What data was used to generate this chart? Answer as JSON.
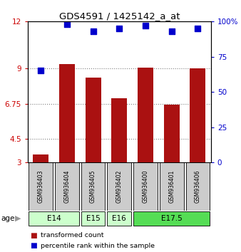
{
  "title": "GDS4591 / 1425142_a_at",
  "samples": [
    "GSM936403",
    "GSM936404",
    "GSM936405",
    "GSM936402",
    "GSM936400",
    "GSM936401",
    "GSM936406"
  ],
  "bar_values": [
    3.5,
    9.3,
    8.4,
    7.1,
    9.05,
    6.7,
    9.0
  ],
  "percentile_values": [
    65,
    98,
    93,
    95,
    97,
    93,
    95
  ],
  "ylim_left": [
    3,
    12
  ],
  "ylim_right": [
    0,
    100
  ],
  "yticks_left": [
    3,
    4.5,
    6.75,
    9,
    12
  ],
  "yticks_right": [
    0,
    25,
    50,
    75,
    100
  ],
  "ytick_labels_left": [
    "3",
    "4.5",
    "6.75",
    "9",
    "12"
  ],
  "ytick_labels_right": [
    "0",
    "25",
    "50",
    "75",
    "100%"
  ],
  "bar_color": "#AA1111",
  "dot_color": "#0000CC",
  "age_groups": [
    {
      "label": "E14",
      "start": 0,
      "end": 1,
      "color": "#ccffcc"
    },
    {
      "label": "E15",
      "start": 2,
      "end": 2,
      "color": "#ccffcc"
    },
    {
      "label": "E16",
      "start": 3,
      "end": 3,
      "color": "#ccffcc"
    },
    {
      "label": "E17.5",
      "start": 4,
      "end": 6,
      "color": "#55dd55"
    }
  ],
  "bar_width": 0.6,
  "dot_size": 30,
  "grid_color": "#000000",
  "grid_alpha": 0.5,
  "grid_linestyle": "dotted"
}
